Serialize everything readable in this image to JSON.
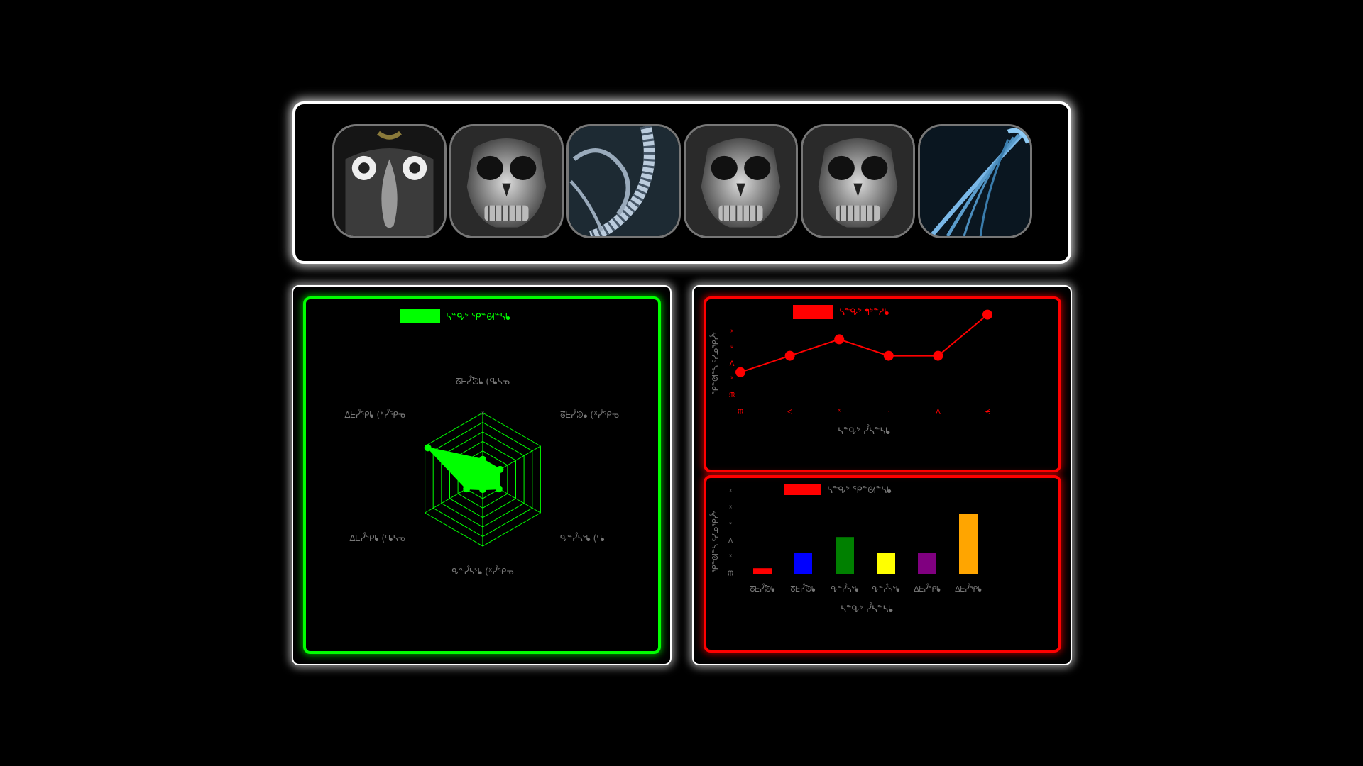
{
  "colors": {
    "accent_green": "#00ff00",
    "accent_red": "#ff0000",
    "label_gray": "#777777"
  },
  "gallery": {
    "thumbnails": [
      {
        "name": "face-scan-thumb",
        "kind": "face"
      },
      {
        "name": "skull-xray-thumb",
        "kind": "skull"
      },
      {
        "name": "spine-xray-thumb",
        "kind": "spine"
      },
      {
        "name": "skull-xray-thumb",
        "kind": "skull"
      },
      {
        "name": "skull-xray-thumb",
        "kind": "skull"
      },
      {
        "name": "wing-xray-thumb",
        "kind": "wing"
      }
    ]
  },
  "chart_data": [
    {
      "type": "radar",
      "legend": "ᓴᓐᕴᔾ ᕿᓐᘛᓐᓴᖲ",
      "legend_color": "#00ff00",
      "axes": [
        "ᘔᖶᓮᘷᖲ (ᑦᖲᓴᓀ",
        "ᘔᖶᓮᘷᖲ (ᕁᓮᕿᓀ",
        "ᕴᓐᓮᓴᔾᖲ (ᑦᖲ",
        "ᕴᓐᓮᓴᔾᖲ (ᕁᓮᕿᓀ",
        "ᐃᖶᓮᕿᖲ (ᑦᖲᓴᓀ",
        "ᐃᖶᓮᕿᖲ (ᕁᓮᕿᓀ"
      ],
      "values": [
        0.3,
        0.3,
        0.28,
        0.15,
        0.28,
        0.95
      ],
      "range": [
        0,
        1
      ],
      "grid_levels": 7
    },
    {
      "type": "line",
      "legend": "ᓴᓐᕴᔾ ᖳᔾᓐᓱᖲ",
      "legend_color": "#ff0000",
      "xlabel": "ᓴᓐᕴᔾ ᓮᓴᓐᓴᖲ",
      "ylabel": "ᕿᓐᘛᓐᓴ ᑦᓯᓄᕿᓮᔾ",
      "x_ticks": [
        "ᙏ",
        "ᐸ",
        "ᕁ",
        "ᐧ",
        "ᐱ",
        "ᗕ"
      ],
      "y_ticks": [
        "ᙏ",
        "ᕁ",
        "ᐱ",
        "ᐡ",
        "ᕁ"
      ],
      "values": [
        1,
        2,
        3,
        2,
        2,
        4.5
      ],
      "ylim": [
        0,
        5
      ]
    },
    {
      "type": "bar",
      "legend": "ᓴᓐᕴᔾ ᕿᓐᘛᓐᓴᖲ",
      "legend_color": "#ff0000",
      "xlabel": "ᓴᓐᕴᔾ ᓮᓴᓐᓴᖲ",
      "ylabel": "ᕿᓐᘛᓐᓴ ᑦᓯᓄᕿᓮᔾ",
      "categories": [
        "ᘔᖶᓮᘷᖲ",
        "ᘔᖶᓮᘷᖲ",
        "ᕴᓐᓮᓴᔾᖲ",
        "ᕴᓐᓮᓴᔾᖲ",
        "ᐃᖶᓮᕿᖲ",
        "ᐃᖶᓮᕿᖲ"
      ],
      "y_ticks": [
        "ᙏ",
        "ᕁ",
        "ᐱ",
        "ᐡ",
        "ᕁ",
        "ᕁ"
      ],
      "values": [
        0.4,
        1.4,
        2.4,
        1.4,
        1.4,
        3.9
      ],
      "bar_colors": [
        "#ff0000",
        "#0000ff",
        "#008000",
        "#ffff00",
        "#800080",
        "#ffa500"
      ],
      "ylim": [
        0,
        5
      ]
    }
  ]
}
